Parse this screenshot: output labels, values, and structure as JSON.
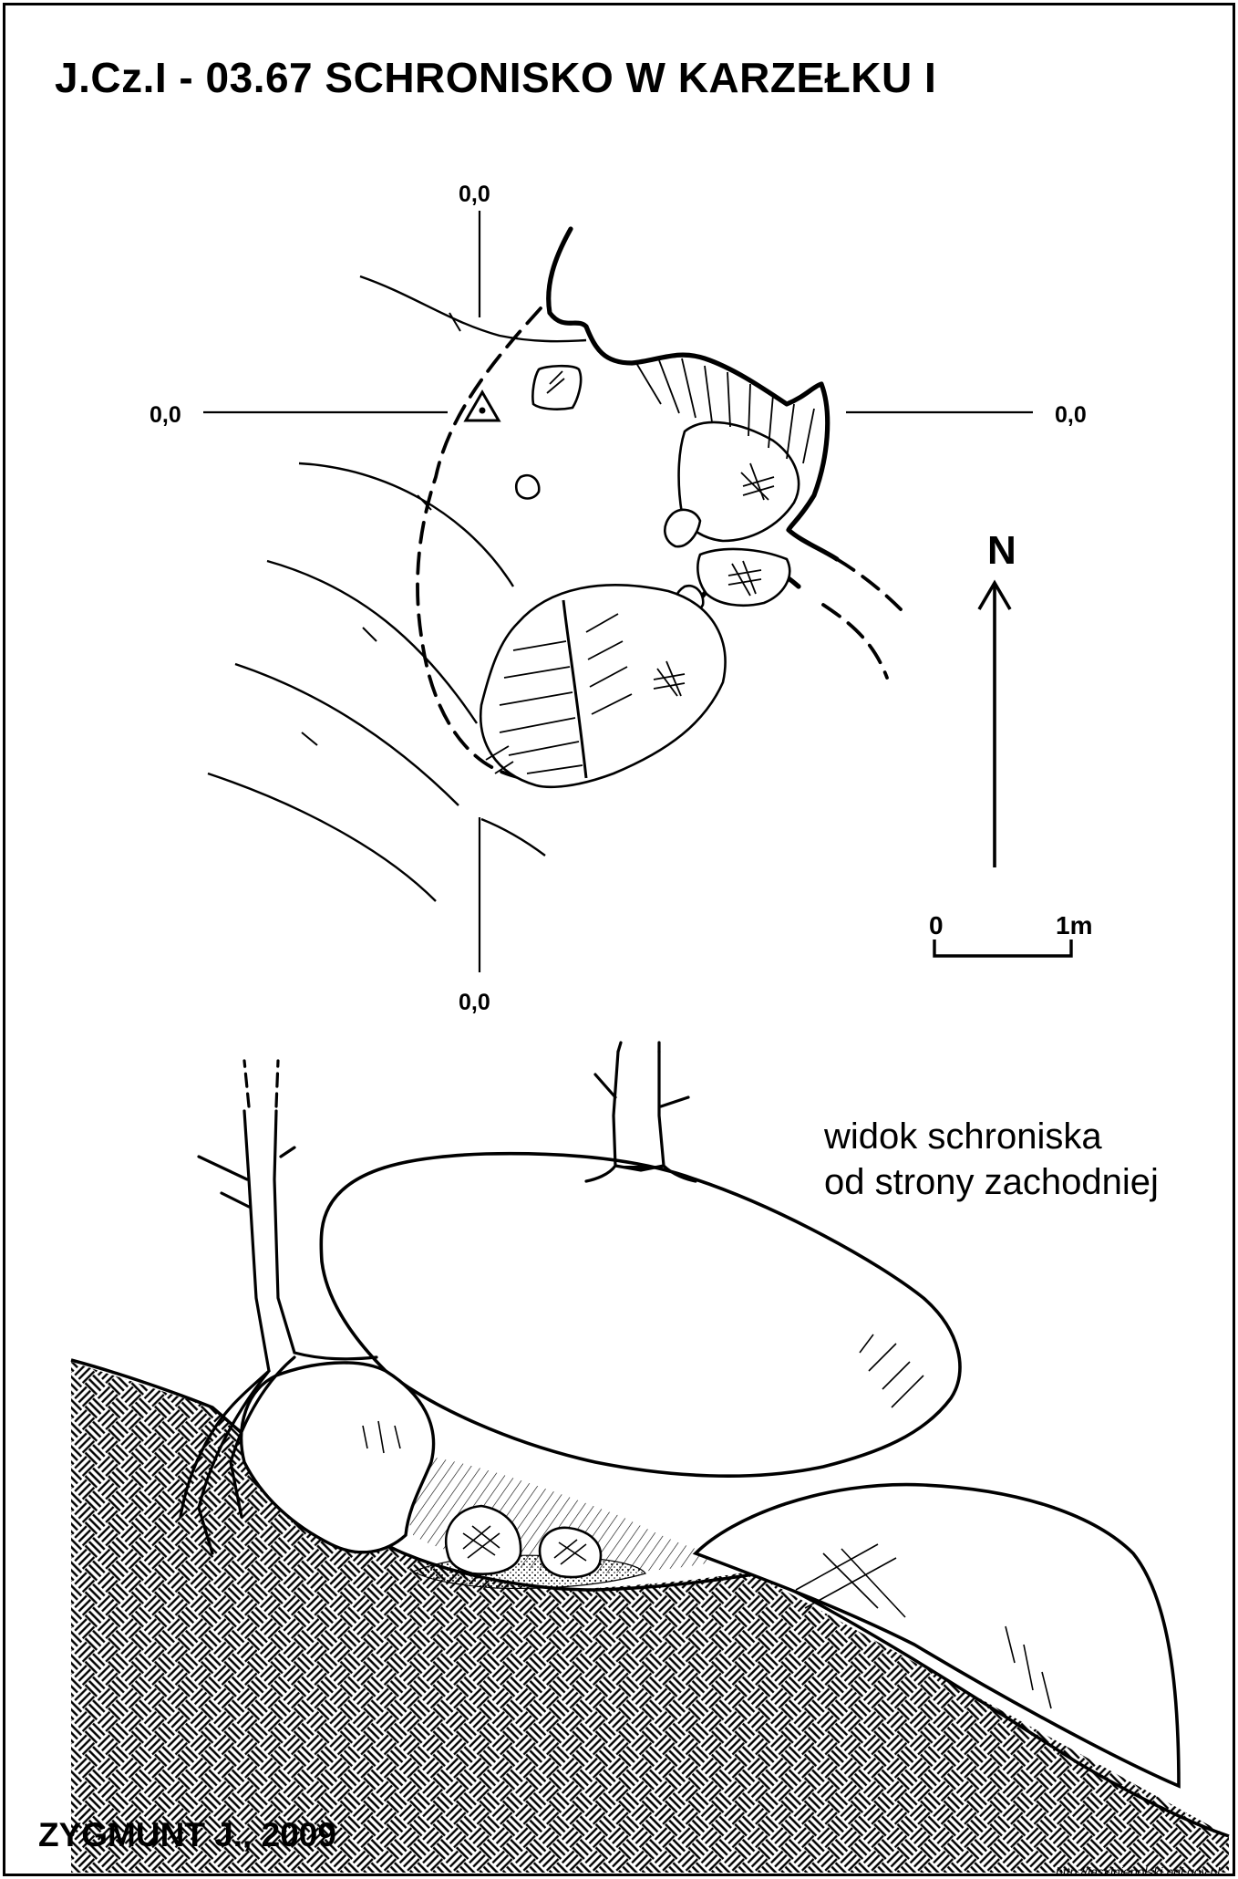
{
  "title": "J.Cz.I - 03.67  SCHRONISKO W KARZEŁKU I",
  "plan": {
    "coord_top": "0,0",
    "coord_left": "0,0",
    "coord_right": "0,0",
    "coord_bottom": "0,0",
    "north_label": "N",
    "scale_start": "0",
    "scale_end": "1m"
  },
  "section": {
    "caption_line1": "widok schroniska",
    "caption_line2": "od strony zachodniej"
  },
  "author": "ZYGMUNT J., 2009",
  "source": "http://jaskiniepolski.pgi.gov.pl",
  "colors": {
    "ink": "#000000",
    "paper": "#ffffff"
  },
  "icons": [
    "survey-station-icon",
    "north-arrow-icon",
    "scale-bar-icon"
  ]
}
